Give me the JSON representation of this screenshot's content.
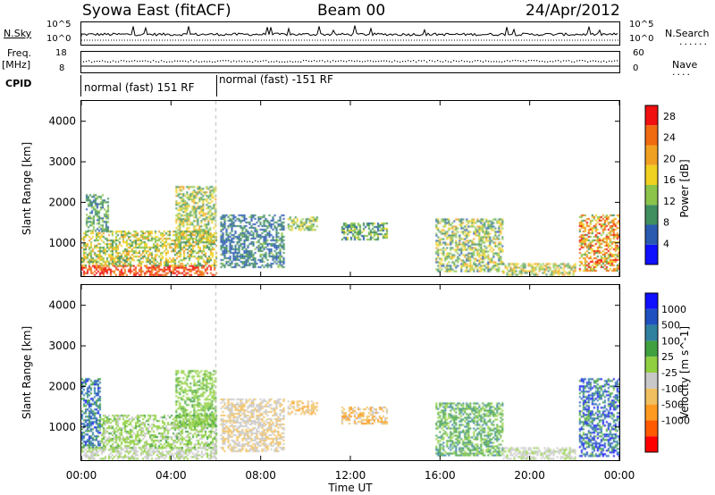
{
  "header": {
    "station": "Syowa East (fitACF)",
    "beam": "Beam 00",
    "date": "24/Apr/2012"
  },
  "left_labels": {
    "nsky": "N.Sky",
    "freq": "Freq.",
    "freq_unit": "[MHz]",
    "cpid": "CPID"
  },
  "right_labels": {
    "nsearch": "N.Search",
    "nave": "Nave"
  },
  "noise_axis": {
    "top": "10^5",
    "bottom": "10^0",
    "right_top": "10^5",
    "right_bottom": "10^0"
  },
  "freq_axis": {
    "top": "18",
    "bottom": "8",
    "right_top": "60",
    "right_bottom": "0"
  },
  "cpid_modes": [
    {
      "label": "normal (fast) 151 RF",
      "start_hour": 0,
      "end_hour": 6
    },
    {
      "label": "normal (fast) -151 RF",
      "start_hour": 6,
      "end_hour": 24
    }
  ],
  "colors": {
    "power_scale": [
      "#1010ff",
      "#2a5ab0",
      "#3f8f5f",
      "#8cc44a",
      "#f0d020",
      "#f0a020",
      "#f06a10",
      "#f01010"
    ],
    "velocity_scale": [
      "#ff0000",
      "#ff5a00",
      "#ff9a20",
      "#f0c060",
      "#c8c8c8",
      "#90d040",
      "#40a040",
      "#3080a0",
      "#2050c0",
      "#1010ff"
    ]
  },
  "chart_data": [
    {
      "type": "heatmap",
      "title": "",
      "xlabel": "",
      "ylabel": "Slant Range [km]",
      "xlim": [
        0,
        24
      ],
      "ylim": [
        180,
        4500
      ],
      "x_ticks": [
        "00:00",
        "04:00",
        "08:00",
        "12:00",
        "16:00",
        "20:00",
        "00:00"
      ],
      "y_ticks": [
        1000,
        2000,
        3000,
        4000
      ],
      "colorbar": {
        "label": "Power [dB]",
        "ticks": [
          4,
          8,
          12,
          16,
          20,
          24,
          28
        ],
        "range": [
          0,
          30
        ]
      },
      "regions": [
        {
          "t0": 0.0,
          "t1": 6.0,
          "r0": 200,
          "r1": 450,
          "v0": 22,
          "v1": 30
        },
        {
          "t0": 0.0,
          "t1": 6.0,
          "r0": 450,
          "r1": 1300,
          "v0": 8,
          "v1": 22
        },
        {
          "t0": 0.2,
          "t1": 1.2,
          "r0": 1300,
          "r1": 2200,
          "v0": 6,
          "v1": 14
        },
        {
          "t0": 4.2,
          "t1": 6.0,
          "r0": 1000,
          "r1": 2400,
          "v0": 8,
          "v1": 20
        },
        {
          "t0": 6.2,
          "t1": 9.0,
          "r0": 400,
          "r1": 1700,
          "v0": 4,
          "v1": 12
        },
        {
          "t0": 9.2,
          "t1": 10.5,
          "r0": 1300,
          "r1": 1650,
          "v0": 8,
          "v1": 18
        },
        {
          "t0": 11.6,
          "t1": 13.6,
          "r0": 1100,
          "r1": 1500,
          "v0": 6,
          "v1": 16
        },
        {
          "t0": 15.8,
          "t1": 18.8,
          "r0": 300,
          "r1": 1600,
          "v0": 6,
          "v1": 20
        },
        {
          "t0": 18.8,
          "t1": 22.0,
          "r0": 200,
          "r1": 500,
          "v0": 8,
          "v1": 22
        },
        {
          "t0": 22.2,
          "t1": 24.0,
          "r0": 300,
          "r1": 1700,
          "v0": 10,
          "v1": 30
        }
      ]
    },
    {
      "type": "heatmap",
      "title": "",
      "xlabel": "Time UT",
      "ylabel": "Slant Range [km]",
      "xlim": [
        0,
        24
      ],
      "ylim": [
        180,
        4500
      ],
      "x_ticks": [
        "00:00",
        "04:00",
        "08:00",
        "12:00",
        "16:00",
        "20:00",
        "00:00"
      ],
      "y_ticks": [
        1000,
        2000,
        3000,
        4000
      ],
      "colorbar": {
        "label": "Velocity [m s^-1]",
        "ticks": [
          1000,
          500,
          100,
          25,
          -25,
          -100,
          -500,
          -1000
        ],
        "range": [
          -1200,
          1200
        ]
      },
      "regions": [
        {
          "t0": 0.0,
          "t1": 6.0,
          "r0": 200,
          "r1": 500,
          "v0": -200,
          "v1": 100
        },
        {
          "t0": 0.0,
          "t1": 0.8,
          "r0": 500,
          "r1": 2200,
          "v0": 300,
          "v1": 1000
        },
        {
          "t0": 0.8,
          "t1": 6.0,
          "r0": 500,
          "r1": 1300,
          "v0": -100,
          "v1": 300
        },
        {
          "t0": 4.2,
          "t1": 6.0,
          "r0": 1000,
          "r1": 2400,
          "v0": 50,
          "v1": 300
        },
        {
          "t0": 6.2,
          "t1": 9.0,
          "r0": 400,
          "r1": 1700,
          "v0": -400,
          "v1": -50
        },
        {
          "t0": 9.2,
          "t1": 10.5,
          "r0": 1300,
          "r1": 1650,
          "v0": -600,
          "v1": -150
        },
        {
          "t0": 11.6,
          "t1": 13.6,
          "r0": 1100,
          "r1": 1500,
          "v0": -600,
          "v1": -100
        },
        {
          "t0": 15.8,
          "t1": 18.8,
          "r0": 300,
          "r1": 1600,
          "v0": 50,
          "v1": 600
        },
        {
          "t0": 18.8,
          "t1": 22.0,
          "r0": 200,
          "r1": 500,
          "v0": -150,
          "v1": 50
        },
        {
          "t0": 22.2,
          "t1": 24.0,
          "r0": 300,
          "r1": 2200,
          "v0": 200,
          "v1": 1200
        }
      ]
    }
  ]
}
